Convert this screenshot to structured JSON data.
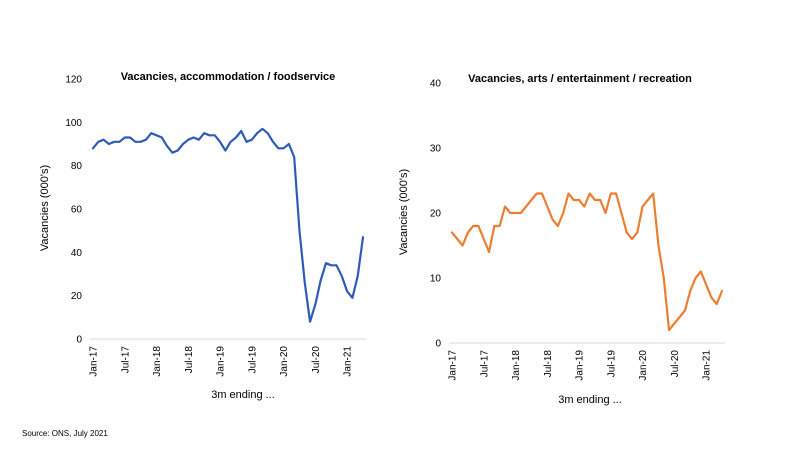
{
  "source_note": "Source: ONS, July 2021",
  "chart_data": [
    {
      "type": "line",
      "title": "Vacancies, accommodation / foodservice",
      "xlabel": "3m ending ...",
      "ylabel": "Vacancies (000's)",
      "ylim": [
        0,
        120
      ],
      "yticks": [
        0,
        20,
        40,
        60,
        80,
        100,
        120
      ],
      "xtick_labels": [
        "Jan-17",
        "Jul-17",
        "Jan-18",
        "Jul-18",
        "Jan-19",
        "Jul-19",
        "Jan-20",
        "Jul-20",
        "Jan-21"
      ],
      "color": "#2e5bb8",
      "series": [
        {
          "values": [
            88,
            91,
            92,
            90,
            91,
            91,
            93,
            93,
            91,
            91,
            92,
            95,
            94,
            93,
            89,
            86,
            87,
            90,
            92,
            93,
            92,
            95,
            94,
            94,
            91,
            87,
            91,
            93,
            96,
            91,
            92,
            95,
            97,
            95,
            91,
            88,
            88,
            90,
            84,
            50,
            26,
            8,
            16,
            27,
            35,
            34,
            34,
            29,
            22,
            19,
            29,
            47
          ]
        }
      ]
    },
    {
      "type": "line",
      "title": "Vacancies, arts / entertainment / recreation",
      "xlabel": "3m ending ...",
      "ylabel": "Vacancies (000's)",
      "ylim": [
        0,
        40
      ],
      "yticks": [
        0,
        10,
        20,
        30,
        40
      ],
      "xtick_labels": [
        "Jan-17",
        "Jul-17",
        "Jan-18",
        "Jul-18",
        "Jan-19",
        "Jul-19",
        "Jan-20",
        "Jul-20",
        "Jan-21"
      ],
      "color": "#ed7d31",
      "series": [
        {
          "values": [
            17,
            16,
            15,
            17,
            18,
            18,
            16,
            14,
            18,
            18,
            21,
            20,
            20,
            20,
            21,
            22,
            23,
            23,
            21,
            19,
            18,
            20,
            23,
            22,
            22,
            21,
            23,
            22,
            22,
            20,
            23,
            23,
            20,
            17,
            16,
            17,
            21,
            22,
            23,
            15,
            10,
            2,
            3,
            4,
            5,
            8,
            10,
            11,
            9,
            7,
            6,
            8
          ]
        }
      ]
    }
  ]
}
